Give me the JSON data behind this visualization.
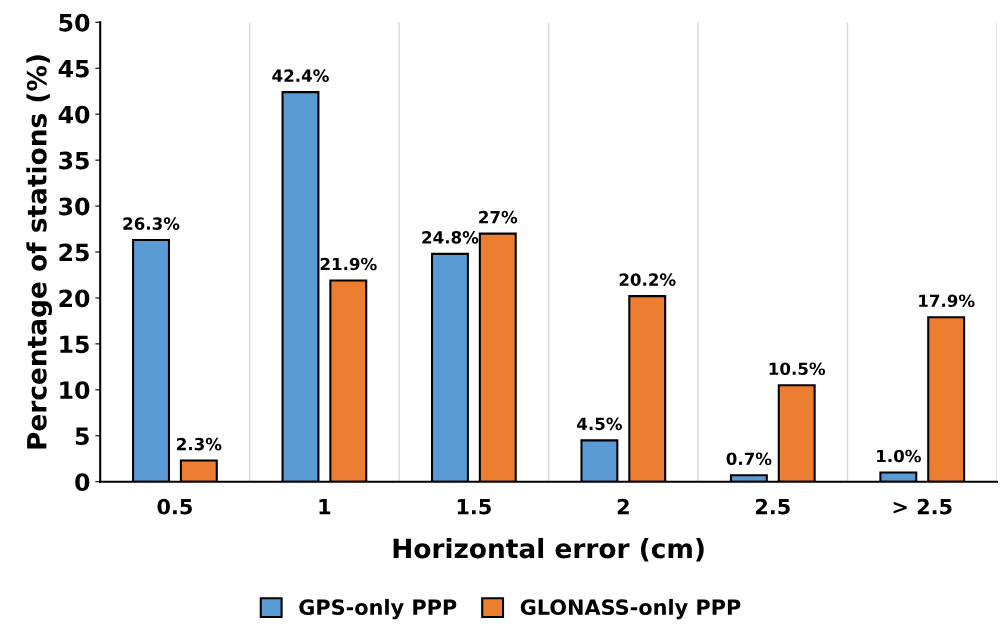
{
  "chart_data": {
    "type": "bar",
    "xlabel": "Horizontal error (cm)",
    "ylabel": "Percentage of stations (%)",
    "categories": [
      "0.5",
      "1",
      "1.5",
      "2",
      "2.5",
      "> 2.5"
    ],
    "series": [
      {
        "name": "GPS-only PPP",
        "color": "#5b9bd5",
        "values": [
          26.3,
          42.4,
          24.8,
          4.5,
          0.7,
          1.0
        ],
        "value_labels": [
          "26.3%",
          "42.4%",
          "24.8%",
          "4.5%",
          "0.7%",
          "1.0%"
        ]
      },
      {
        "name": "GLONASS-only PPP",
        "color": "#ed7d31",
        "values": [
          2.3,
          21.9,
          27,
          20.2,
          10.5,
          17.9
        ],
        "value_labels": [
          "2.3%",
          "21.9%",
          "27%",
          "20.2%",
          "10.5%",
          "17.9%"
        ]
      }
    ],
    "ylim": [
      0,
      50
    ],
    "yticks": [
      0,
      5,
      10,
      15,
      20,
      25,
      30,
      35,
      40,
      45,
      50
    ],
    "grid": "x",
    "legend": "bottom"
  }
}
